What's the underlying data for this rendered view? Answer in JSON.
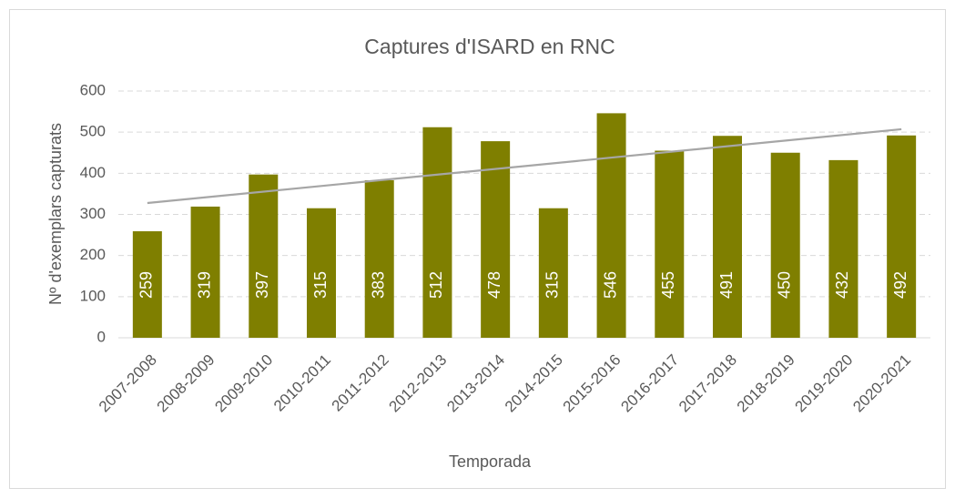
{
  "chart_data": {
    "type": "bar",
    "title": "Captures d'ISARD en RNC",
    "x_label": "Temporada",
    "y_label": "Nº d'exemplars capturats",
    "categories": [
      "2007-2008",
      "2008-2009",
      "2009-2010",
      "2010-2011",
      "2011-2012",
      "2012-2013",
      "2013-2014",
      "2014-2015",
      "2015-2016",
      "2016-2017",
      "2017-2018",
      "2018-2019",
      "2019-2020",
      "2020-2021"
    ],
    "values": [
      259,
      319,
      397,
      315,
      383,
      512,
      478,
      315,
      546,
      455,
      491,
      450,
      432,
      492
    ],
    "color": "#7f7f00",
    "ylim": [
      0,
      600
    ],
    "yticks": [
      0,
      100,
      200,
      300,
      400,
      500,
      600
    ],
    "grid": true,
    "trendline": true,
    "trendline_color": "#a6a6a6"
  }
}
